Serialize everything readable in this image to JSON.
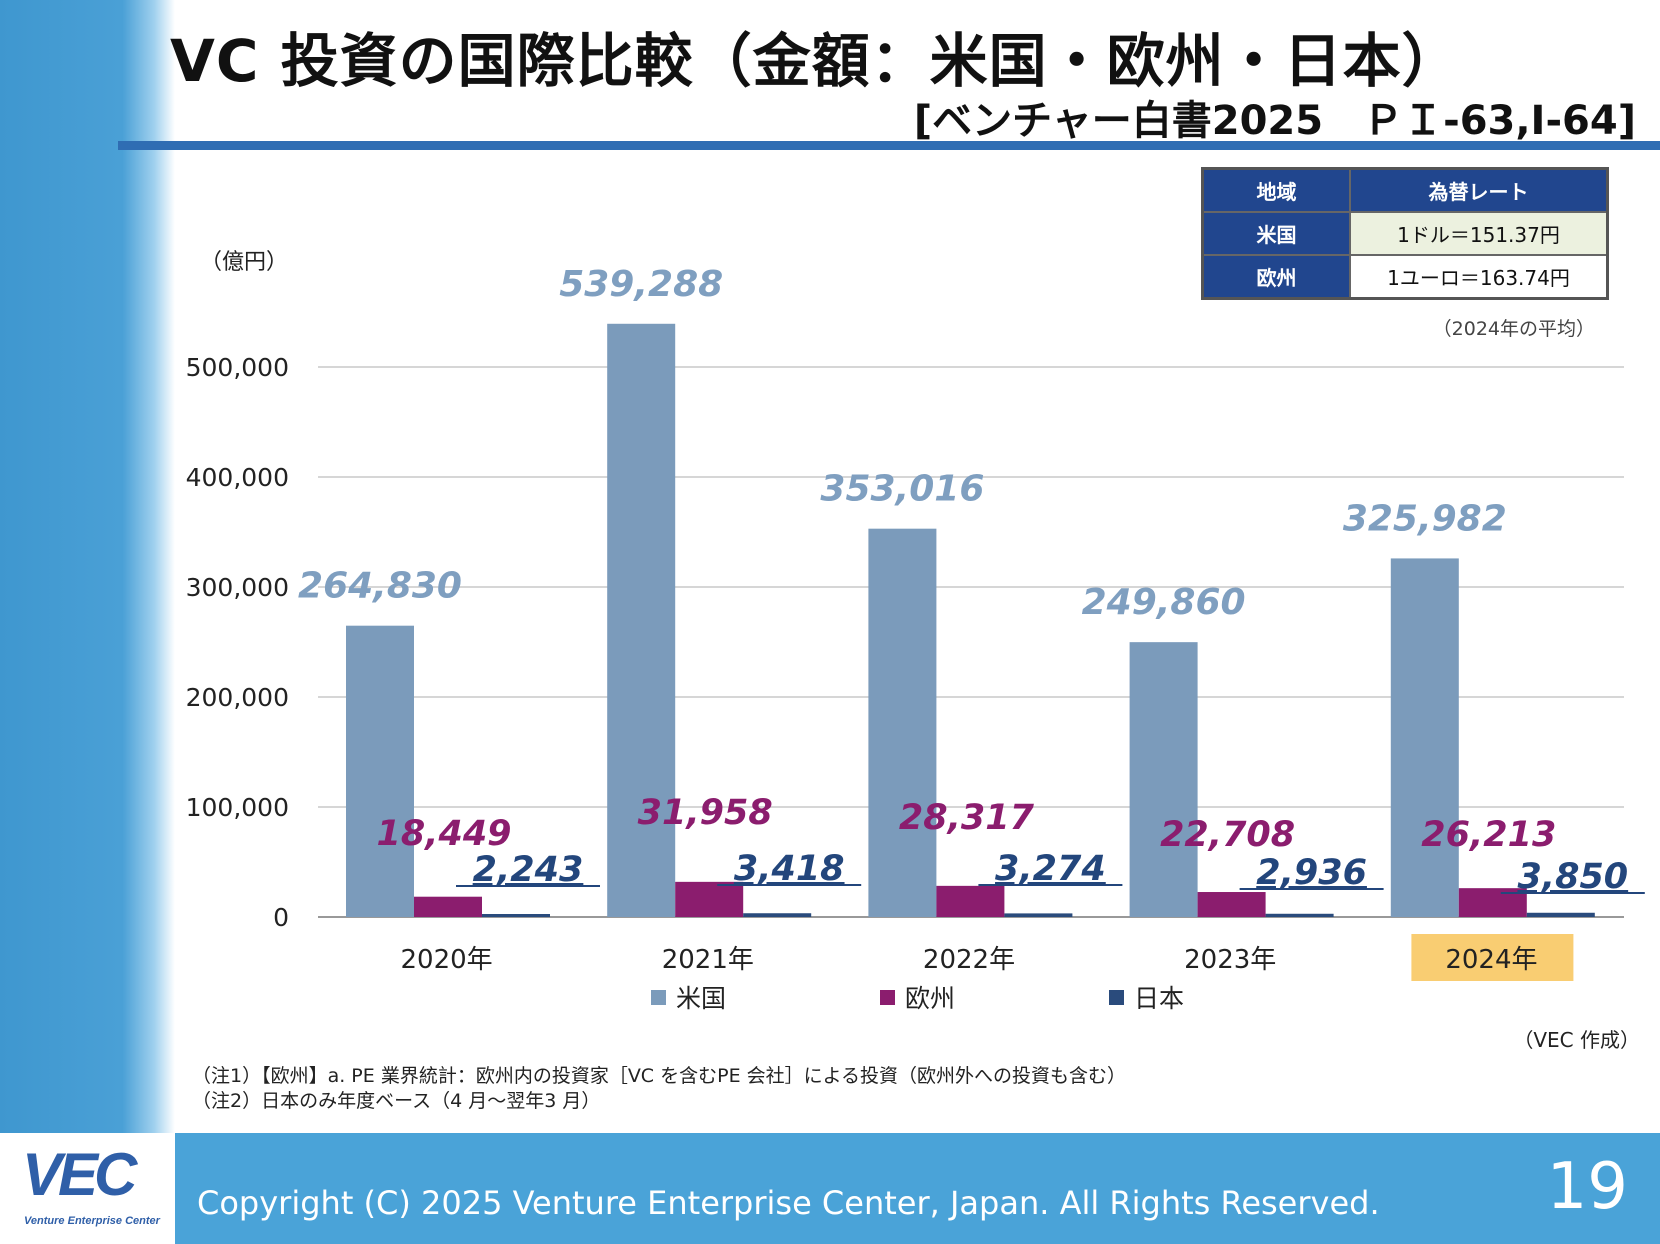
{
  "slide": {
    "title": "VC 投資の国際比較（金額：米国・欧州・日本）",
    "subtitle": "[ベンチャー白書2025　ＰＩ-63,I-64]",
    "unit_label": "（億円）",
    "avg_note": "（2024年の平均）",
    "credit": "（VEC 作成）",
    "notes": [
      "（注1）【欧州】a. PE 業界統計：欧州内の投資家［VC を含むPE 会社］による投資（欧州外への投資も含む）",
      "（注2）日本のみ年度ベース（4 月～翌年3 月）"
    ],
    "footer": {
      "logo": "VEC",
      "logo_sub": "Venture Enterprise Center",
      "copyright": "Copyright (C) 2025 Venture Enterprise Center, Japan. All Rights Reserved.",
      "page_number": "19"
    }
  },
  "rate_table": {
    "headers": [
      "地域",
      "為替レート"
    ],
    "rows": [
      {
        "region": "米国",
        "rate": "1ドル＝151.37円"
      },
      {
        "region": "欧州",
        "rate": "1ユーロ＝163.74円"
      }
    ]
  },
  "chart_data": {
    "type": "bar",
    "title": "VC 投資の国際比較（金額：米国・欧州・日本）",
    "ylabel": "（億円）",
    "xlabel": "",
    "ylim": [
      0,
      500000
    ],
    "yticks": [
      0,
      100000,
      200000,
      300000,
      400000,
      500000
    ],
    "ytick_labels": [
      "0",
      "100,000",
      "200,000",
      "300,000",
      "400,000",
      "500,000"
    ],
    "grid": true,
    "legend_position": "bottom",
    "categories": [
      "2020年",
      "2021年",
      "2022年",
      "2023年",
      "2024年"
    ],
    "highlighted_category": "2024年",
    "series": [
      {
        "name": "米国",
        "color": "#7b9bbb",
        "label_color": "#7f9fc0",
        "values": [
          264830,
          539288,
          353016,
          249860,
          325982
        ],
        "labels": [
          "264,830",
          "539,288",
          "353,016",
          "249,860",
          "325,982"
        ]
      },
      {
        "name": "欧州",
        "color": "#8b1d6e",
        "label_color": "#8b1d6e",
        "values": [
          18449,
          31958,
          28317,
          22708,
          26213
        ],
        "labels": [
          "18,449",
          "31,958",
          "28,317",
          "22,708",
          "26,213"
        ]
      },
      {
        "name": "日本",
        "color": "#2a4b7c",
        "label_color": "#23467c",
        "values": [
          2243,
          3418,
          3274,
          2936,
          3850
        ],
        "labels": [
          "2,243",
          "3,418",
          "3,274",
          "2,936",
          "3,850"
        ]
      }
    ]
  }
}
